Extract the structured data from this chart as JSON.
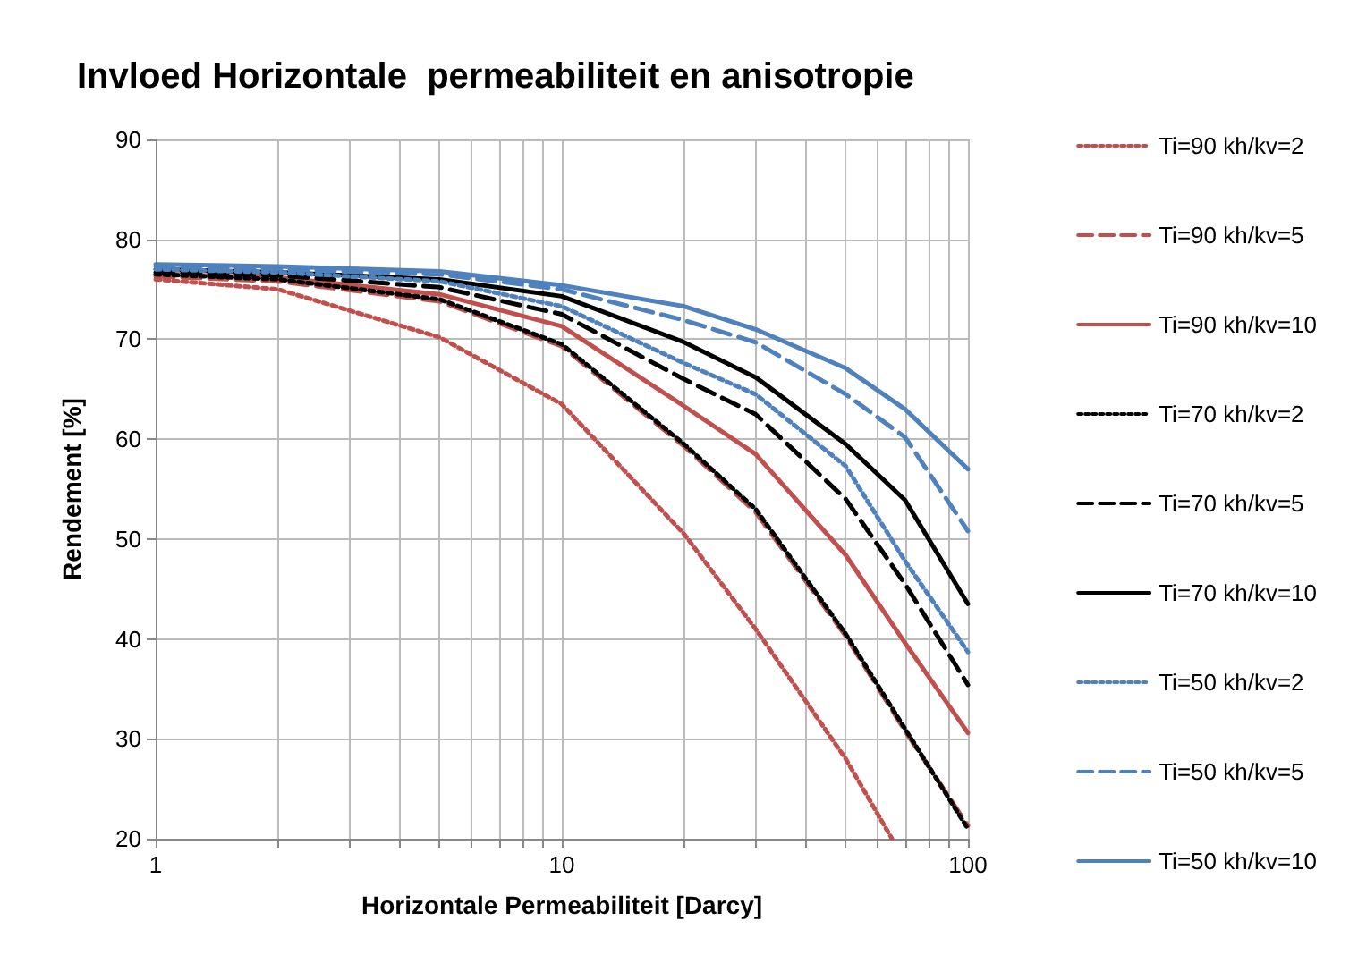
{
  "chart_data": {
    "type": "line",
    "title": "Invloed Horizontale  permeabiliteit en anisotropie",
    "xlabel": "Horizontale Permeabiliteit [Darcy]",
    "ylabel": "Rendement [%]",
    "log": "x",
    "xlim": [
      1,
      100
    ],
    "ylim": [
      20,
      90
    ],
    "xticks": [
      1,
      {
        "value": 2,
        "label": null
      },
      {
        "value": 3,
        "label": null
      },
      {
        "value": 4,
        "label": null
      },
      {
        "value": 5,
        "label": null
      },
      {
        "value": 6,
        "label": null
      },
      {
        "value": 7,
        "label": null
      },
      {
        "value": 8,
        "label": null
      },
      {
        "value": 9,
        "label": null
      },
      10,
      {
        "value": 20,
        "label": null
      },
      {
        "value": 30,
        "label": null
      },
      {
        "value": 40,
        "label": null
      },
      {
        "value": 50,
        "label": null
      },
      {
        "value": 60,
        "label": null
      },
      {
        "value": 70,
        "label": null
      },
      {
        "value": 80,
        "label": null
      },
      {
        "value": 90,
        "label": null
      },
      100
    ],
    "yticks": [
      20,
      30,
      40,
      50,
      60,
      70,
      80,
      90
    ],
    "grid": true,
    "legend": "right",
    "marker": "none",
    "x": [
      1,
      2,
      5,
      10,
      20,
      30,
      50,
      70,
      100
    ],
    "series": [
      {
        "name": "Ti=90 kh/kv=2",
        "color": "#c0504d",
        "line_style": "dotted",
        "x": [
          1,
          2,
          5,
          10,
          20,
          30,
          50,
          65
        ],
        "values": [
          76,
          75,
          70.2,
          63.5,
          50.5,
          41,
          28,
          20
        ]
      },
      {
        "name": "Ti=90 kh/kv=5",
        "color": "#c0504d",
        "line_style": "dashed",
        "values": [
          76.3,
          75.8,
          73.8,
          69.3,
          59.3,
          52.7,
          40.3,
          30.8,
          21.3
        ]
      },
      {
        "name": "Ti=90 kh/kv=10",
        "color": "#c0504d",
        "line_style": "solid",
        "values": [
          76.5,
          76.2,
          74.5,
          71.3,
          63.3,
          58.5,
          48.4,
          39.6,
          30.6
        ]
      },
      {
        "name": "Ti=70 kh/kv=2",
        "color": "#000000",
        "line_style": "dotted",
        "values": [
          76.5,
          76,
          74,
          69.5,
          59.5,
          53,
          40.5,
          31,
          21
        ]
      },
      {
        "name": "Ti=70 kh/kv=5",
        "color": "#000000",
        "line_style": "dashed",
        "values": [
          76.7,
          76.4,
          75.2,
          72.5,
          66,
          62.5,
          54,
          45.5,
          35.4
        ]
      },
      {
        "name": "Ti=70 kh/kv=10",
        "color": "#000000",
        "line_style": "solid",
        "values": [
          77,
          76.7,
          76,
          74.3,
          69.7,
          66.2,
          59.5,
          53.9,
          43.5
        ]
      },
      {
        "name": "Ti=50 kh/kv=2",
        "color": "#4f81bd",
        "line_style": "dotted",
        "values": [
          77,
          76.7,
          75.8,
          73.3,
          67.6,
          64.5,
          57.3,
          47.8,
          38.7
        ]
      },
      {
        "name": "Ti=50 kh/kv=5",
        "color": "#4f81bd",
        "line_style": "dashed",
        "values": [
          77.3,
          77,
          76.5,
          75,
          71.9,
          69.7,
          64.5,
          60.2,
          50.8
        ]
      },
      {
        "name": "Ti=50 kh/kv=10",
        "color": "#4f81bd",
        "line_style": "solid",
        "values": [
          77.5,
          77.3,
          76.8,
          75.4,
          73.3,
          71,
          67.1,
          63,
          57
        ]
      }
    ]
  }
}
